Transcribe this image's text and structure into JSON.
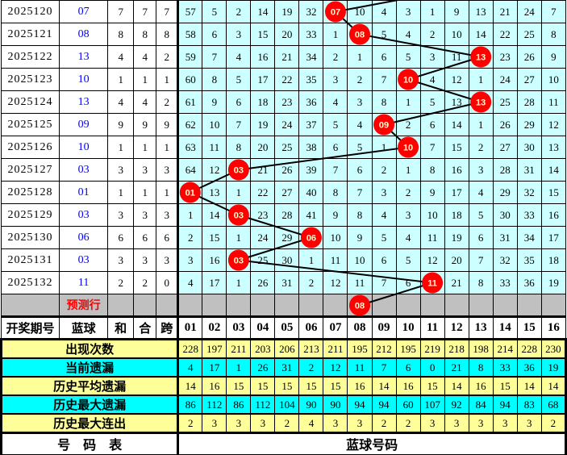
{
  "header": {
    "issue": "开奖期号",
    "blue": "蓝球",
    "he": "和",
    "hezhi": "合",
    "kua": "跨",
    "ball_numbers": [
      "01",
      "02",
      "03",
      "04",
      "05",
      "06",
      "07",
      "08",
      "09",
      "10",
      "11",
      "12",
      "13",
      "14",
      "15",
      "16"
    ]
  },
  "draws": [
    {
      "issue": "2025120",
      "blue": "07",
      "he": "7",
      "hezhi": "7",
      "kua": "7",
      "ball_col": 7,
      "cells": [
        "57",
        "5",
        "2",
        "14",
        "19",
        "32",
        "",
        "10",
        "4",
        "3",
        "1",
        "9",
        "13",
        "21",
        "24",
        "7"
      ]
    },
    {
      "issue": "2025121",
      "blue": "08",
      "he": "8",
      "hezhi": "8",
      "kua": "8",
      "ball_col": 8,
      "cells": [
        "58",
        "6",
        "3",
        "15",
        "20",
        "33",
        "1",
        "",
        "5",
        "4",
        "2",
        "10",
        "14",
        "22",
        "25",
        "8"
      ]
    },
    {
      "issue": "2025122",
      "blue": "13",
      "he": "4",
      "hezhi": "4",
      "kua": "2",
      "ball_col": 13,
      "cells": [
        "59",
        "7",
        "4",
        "16",
        "21",
        "34",
        "2",
        "1",
        "6",
        "5",
        "3",
        "11",
        "",
        "23",
        "26",
        "9"
      ]
    },
    {
      "issue": "2025123",
      "blue": "10",
      "he": "1",
      "hezhi": "1",
      "kua": "1",
      "ball_col": 10,
      "cells": [
        "60",
        "8",
        "5",
        "17",
        "22",
        "35",
        "3",
        "2",
        "7",
        "",
        "4",
        "12",
        "1",
        "24",
        "27",
        "10"
      ]
    },
    {
      "issue": "2025124",
      "blue": "13",
      "he": "4",
      "hezhi": "4",
      "kua": "2",
      "ball_col": 13,
      "cells": [
        "61",
        "9",
        "6",
        "18",
        "23",
        "36",
        "4",
        "3",
        "8",
        "1",
        "5",
        "13",
        "",
        "25",
        "28",
        "11"
      ]
    },
    {
      "issue": "2025125",
      "blue": "09",
      "he": "9",
      "hezhi": "9",
      "kua": "9",
      "ball_col": 9,
      "cells": [
        "62",
        "10",
        "7",
        "19",
        "24",
        "37",
        "5",
        "4",
        "",
        "2",
        "6",
        "14",
        "1",
        "26",
        "29",
        "12"
      ]
    },
    {
      "issue": "2025126",
      "blue": "10",
      "he": "1",
      "hezhi": "1",
      "kua": "1",
      "ball_col": 10,
      "cells": [
        "63",
        "11",
        "8",
        "20",
        "25",
        "38",
        "6",
        "5",
        "1",
        "",
        "7",
        "15",
        "2",
        "27",
        "30",
        "13"
      ]
    },
    {
      "issue": "2025127",
      "blue": "03",
      "he": "3",
      "hezhi": "3",
      "kua": "3",
      "ball_col": 3,
      "cells": [
        "64",
        "12",
        "",
        "21",
        "26",
        "39",
        "7",
        "6",
        "2",
        "1",
        "8",
        "16",
        "3",
        "28",
        "31",
        "14"
      ]
    },
    {
      "issue": "2025128",
      "blue": "01",
      "he": "1",
      "hezhi": "1",
      "kua": "1",
      "ball_col": 1,
      "cells": [
        "",
        "13",
        "1",
        "22",
        "27",
        "40",
        "8",
        "7",
        "3",
        "2",
        "9",
        "17",
        "4",
        "29",
        "32",
        "15"
      ]
    },
    {
      "issue": "2025129",
      "blue": "03",
      "he": "3",
      "hezhi": "3",
      "kua": "3",
      "ball_col": 3,
      "cells": [
        "1",
        "14",
        "",
        "23",
        "28",
        "41",
        "9",
        "8",
        "4",
        "3",
        "10",
        "18",
        "5",
        "30",
        "33",
        "16"
      ]
    },
    {
      "issue": "2025130",
      "blue": "06",
      "he": "6",
      "hezhi": "6",
      "kua": "6",
      "ball_col": 6,
      "cells": [
        "2",
        "15",
        "1",
        "24",
        "29",
        "",
        "10",
        "9",
        "5",
        "4",
        "11",
        "19",
        "6",
        "31",
        "34",
        "17"
      ]
    },
    {
      "issue": "2025131",
      "blue": "03",
      "he": "3",
      "hezhi": "3",
      "kua": "3",
      "ball_col": 3,
      "cells": [
        "3",
        "16",
        "",
        "25",
        "30",
        "1",
        "11",
        "10",
        "6",
        "5",
        "12",
        "20",
        "7",
        "32",
        "35",
        "18"
      ]
    },
    {
      "issue": "2025132",
      "blue": "11",
      "he": "2",
      "hezhi": "2",
      "kua": "0",
      "ball_col": 11,
      "cells": [
        "4",
        "17",
        "1",
        "26",
        "31",
        "2",
        "12",
        "11",
        "7",
        "6",
        "",
        "21",
        "8",
        "33",
        "36",
        "19"
      ]
    }
  ],
  "prediction_row": {
    "label": "预测行",
    "ball": "08",
    "ball_col": 8
  },
  "stats": [
    {
      "label": "出现次数",
      "style": "yellow",
      "values": [
        "228",
        "197",
        "211",
        "203",
        "206",
        "213",
        "211",
        "195",
        "212",
        "195",
        "219",
        "218",
        "198",
        "214",
        "228",
        "230"
      ]
    },
    {
      "label": "当前遗漏",
      "style": "cyan",
      "values": [
        "4",
        "17",
        "1",
        "26",
        "31",
        "2",
        "12",
        "11",
        "7",
        "6",
        "0",
        "21",
        "8",
        "33",
        "36",
        "19"
      ]
    },
    {
      "label": "历史平均遗漏",
      "style": "yellow",
      "values": [
        "14",
        "16",
        "15",
        "15",
        "15",
        "15",
        "15",
        "16",
        "14",
        "16",
        "15",
        "14",
        "16",
        "15",
        "14",
        "14"
      ]
    },
    {
      "label": "历史最大遗漏",
      "style": "cyan",
      "values": [
        "86",
        "112",
        "86",
        "112",
        "104",
        "90",
        "90",
        "94",
        "94",
        "60",
        "107",
        "92",
        "84",
        "94",
        "83",
        "68"
      ]
    },
    {
      "label": "历史最大连出",
      "style": "yellow",
      "values": [
        "2",
        "3",
        "3",
        "3",
        "2",
        "4",
        "3",
        "3",
        "2",
        "2",
        "3",
        "3",
        "3",
        "3",
        "3",
        "2"
      ]
    }
  ],
  "footer": {
    "left": "号　码　表",
    "right": "蓝球号码"
  },
  "colors": {
    "grid_bg": "#CCFFFF",
    "pred_bg": "#C0C0C0",
    "stat_yellow": "#FFFF99",
    "stat_cyan": "#00FFFF",
    "ball_red": "#FF0000",
    "ball_text": "#FFFFCC",
    "blue_text": "#0000FF",
    "pred_text": "#FF0000",
    "line": "#000000"
  },
  "chart_data": {
    "type": "line",
    "title": "蓝球号码走势 (blue-ball trend with omission counts)",
    "x": [
      "2025120",
      "2025121",
      "2025122",
      "2025123",
      "2025124",
      "2025125",
      "2025126",
      "2025127",
      "2025128",
      "2025129",
      "2025130",
      "2025131",
      "2025132"
    ],
    "series": [
      {
        "name": "蓝球",
        "values": [
          7,
          8,
          13,
          10,
          13,
          9,
          10,
          3,
          1,
          3,
          6,
          3,
          11
        ]
      }
    ],
    "prediction": {
      "row": "预测行",
      "value": 8
    },
    "ylim": [
      1,
      16
    ],
    "legend_position": "none",
    "grid": true
  }
}
